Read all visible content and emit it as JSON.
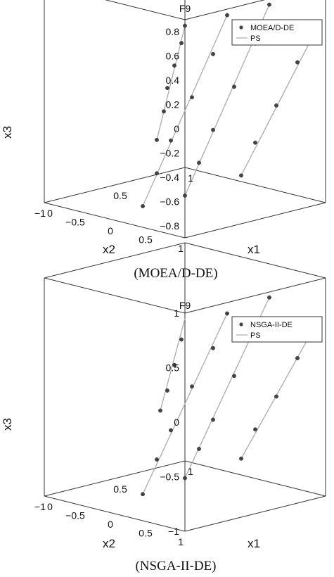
{
  "chart_data": [
    {
      "type": "scatter",
      "title": "F9",
      "caption": "(MOEA/D-DE)",
      "xlabel": "x1",
      "ylabel": "x2",
      "zlabel": "x3",
      "xticks": [
        "0",
        "0.5",
        "1"
      ],
      "yticks": [
        "1",
        "0.5",
        "0",
        "−0.5",
        "−1"
      ],
      "zticks": [
        "0.8",
        "0.6",
        "0.4",
        "0.2",
        "0",
        "−0.2",
        "−0.4",
        "−0.6",
        "−0.8"
      ],
      "xlim": [
        0,
        1
      ],
      "ylim": [
        -1,
        1
      ],
      "zlim": [
        -0.9,
        0.9
      ],
      "legend": [
        {
          "label": "MOEA/D-DE",
          "marker": "dot",
          "color": "#444444"
        },
        {
          "label": "PS",
          "marker": "line",
          "color": "#aaaaaa"
        }
      ],
      "legend_position": "top-right",
      "series": [
        {
          "name": "MOEA/D-DE",
          "points": [
            [
              0.0,
              1.0,
              0.85
            ],
            [
              0.0,
              0.95,
              0.7
            ],
            [
              0.0,
              0.85,
              0.5
            ],
            [
              0.0,
              0.75,
              0.3
            ],
            [
              0.0,
              0.7,
              0.1
            ],
            [
              0.0,
              0.6,
              -0.15
            ],
            [
              0.3,
              1.0,
              0.85
            ],
            [
              0.3,
              0.8,
              0.5
            ],
            [
              0.3,
              0.5,
              0.1
            ],
            [
              0.3,
              0.2,
              -0.3
            ],
            [
              0.3,
              0.0,
              -0.6
            ],
            [
              0.3,
              -0.2,
              -0.9
            ],
            [
              0.6,
              1.0,
              0.85
            ],
            [
              0.6,
              0.8,
              0.5
            ],
            [
              0.6,
              0.5,
              0.1
            ],
            [
              0.6,
              0.2,
              -0.3
            ],
            [
              0.6,
              0.0,
              -0.6
            ],
            [
              0.6,
              -0.2,
              -0.9
            ],
            [
              1.0,
              0.9,
              0.55
            ],
            [
              1.0,
              0.6,
              0.2
            ],
            [
              1.0,
              0.3,
              -0.2
            ],
            [
              1.0,
              0.0,
              -0.55
            ],
            [
              1.0,
              -0.2,
              -0.85
            ]
          ]
        },
        {
          "name": "PS",
          "curves": [
            [
              [
                0.0,
                1.0,
                0.85
              ],
              [
                0.0,
                0.6,
                -0.15
              ]
            ],
            [
              [
                0.3,
                1.0,
                0.85
              ],
              [
                0.3,
                -0.2,
                -0.9
              ]
            ],
            [
              [
                0.6,
                1.0,
                0.85
              ],
              [
                0.6,
                -0.2,
                -0.9
              ]
            ],
            [
              [
                1.0,
                0.9,
                0.55
              ],
              [
                1.0,
                -0.2,
                -0.85
              ]
            ]
          ]
        }
      ]
    },
    {
      "type": "scatter",
      "title": "F9",
      "caption": "(NSGA-II-DE)",
      "xlabel": "x1",
      "ylabel": "x2",
      "zlabel": "x3",
      "xticks": [
        "0",
        "0.5",
        "1"
      ],
      "yticks": [
        "1",
        "0.5",
        "0",
        "−0.5",
        "−1"
      ],
      "zticks": [
        "1",
        "0.5",
        "0",
        "−0.5",
        "−1"
      ],
      "xlim": [
        0,
        1
      ],
      "ylim": [
        -1,
        1
      ],
      "zlim": [
        -1,
        1
      ],
      "legend": [
        {
          "label": "NSGA-II-DE",
          "marker": "dot",
          "color": "#444444"
        },
        {
          "label": "PS",
          "marker": "line",
          "color": "#aaaaaa"
        }
      ],
      "legend_position": "top-right",
      "series": [
        {
          "name": "NSGA-II-DE",
          "points": [
            [
              0.0,
              0.95,
              0.75
            ],
            [
              0.0,
              0.85,
              0.5
            ],
            [
              0.0,
              0.75,
              0.25
            ],
            [
              0.0,
              0.65,
              0.05
            ],
            [
              0.3,
              1.0,
              0.9
            ],
            [
              0.3,
              0.8,
              0.55
            ],
            [
              0.3,
              0.5,
              0.15
            ],
            [
              0.3,
              0.2,
              -0.3
            ],
            [
              0.3,
              0.0,
              -0.6
            ],
            [
              0.3,
              -0.2,
              -0.95
            ],
            [
              0.6,
              1.0,
              0.95
            ],
            [
              0.6,
              0.8,
              0.6
            ],
            [
              0.6,
              0.5,
              0.15
            ],
            [
              0.6,
              0.2,
              -0.3
            ],
            [
              0.6,
              0.0,
              -0.6
            ],
            [
              0.6,
              -0.2,
              -0.9
            ],
            [
              1.0,
              0.9,
              0.6
            ],
            [
              1.0,
              0.6,
              0.2
            ],
            [
              1.0,
              0.3,
              -0.2
            ],
            [
              1.0,
              0.0,
              -0.55
            ],
            [
              1.0,
              -0.2,
              -0.85
            ]
          ]
        },
        {
          "name": "PS",
          "curves": [
            [
              [
                0.0,
                1.0,
                0.95
              ],
              [
                0.0,
                0.65,
                0.05
              ]
            ],
            [
              [
                0.3,
                1.0,
                0.9
              ],
              [
                0.3,
                -0.2,
                -0.95
              ]
            ],
            [
              [
                0.6,
                1.0,
                0.95
              ],
              [
                0.6,
                -0.2,
                -0.9
              ]
            ],
            [
              [
                1.0,
                0.9,
                0.6
              ],
              [
                1.0,
                -0.2,
                -0.85
              ]
            ]
          ]
        }
      ]
    }
  ]
}
